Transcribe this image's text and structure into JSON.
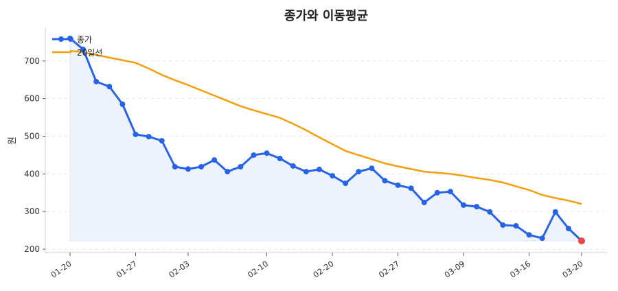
{
  "chart_data": {
    "type": "line",
    "title": "종가와 이동평균",
    "xlabel": "",
    "ylabel": "원",
    "ylim": [
      191,
      789
    ],
    "yticks": [
      200,
      300,
      400,
      500,
      600,
      700
    ],
    "xtick_labels": [
      {
        "index": 0,
        "label": "01-20"
      },
      {
        "index": 5,
        "label": "01-27"
      },
      {
        "index": 9,
        "label": "02-03"
      },
      {
        "index": 15,
        "label": "02-10"
      },
      {
        "index": 20,
        "label": "02-20"
      },
      {
        "index": 25,
        "label": "02-27"
      },
      {
        "index": 30,
        "label": "03-09"
      },
      {
        "index": 35,
        "label": "03-16"
      },
      {
        "index": 39,
        "label": "03-20"
      }
    ],
    "grid": "horizontal dashed",
    "legend_position": "top-left",
    "series": [
      {
        "name": "종가",
        "color": "#2563eb",
        "markers": true,
        "fill": "#eef2fc",
        "values": [
          760,
          731,
          645,
          632,
          585,
          505,
          499,
          488,
          419,
          413,
          419,
          437,
          406,
          419,
          450,
          455,
          441,
          421,
          406,
          412,
          395,
          375,
          406,
          415,
          382,
          370,
          362,
          324,
          350,
          353,
          317,
          313,
          299,
          264,
          262,
          238,
          229,
          299,
          255,
          222
        ]
      },
      {
        "name": "20일선",
        "color": "#f59e0b",
        "markers": false,
        "values": [
          727,
          723,
          716,
          709,
          702,
          695,
          680,
          663,
          649,
          636,
          622,
          608,
          594,
          580,
          569,
          559,
          549,
          533,
          516,
          497,
          479,
          461,
          450,
          439,
          428,
          420,
          413,
          406,
          403,
          400,
          395,
          389,
          384,
          377,
          367,
          357,
          344,
          336,
          329,
          320
        ]
      }
    ],
    "last_point_color": "#ef4444"
  }
}
